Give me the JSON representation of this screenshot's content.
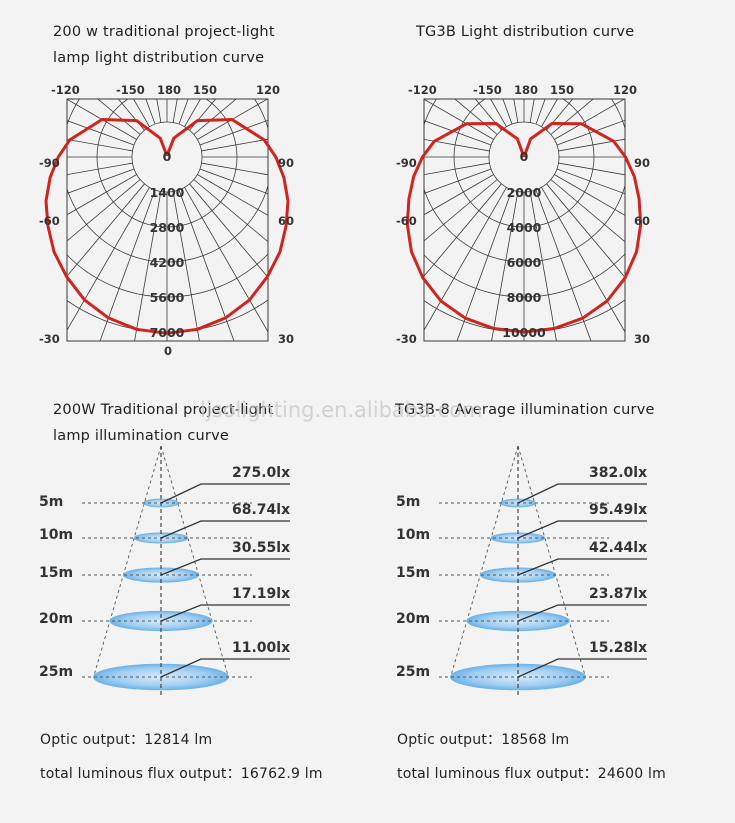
{
  "watermark": "ljsolighting.en.alibaba.com",
  "chart_data": [
    {
      "type": "polar-light-distribution",
      "title_lines": [
        "200 w traditional project-light",
        "lamp light distribution curve"
      ],
      "top_angle_labels": [
        "-120",
        "-150",
        "180",
        "150",
        "120"
      ],
      "left_angle_labels": [
        "-90",
        "-60",
        "-30"
      ],
      "right_angle_labels": [
        "90",
        "60",
        "30"
      ],
      "bottom_angle_label": "0",
      "center_label": "0",
      "radial_ticks": [
        "1400",
        "2800",
        "4200",
        "5600",
        "7000"
      ],
      "rmax": 7000,
      "curve": {
        "unit": "cd",
        "angles": [
          180,
          160,
          140,
          120,
          100,
          90,
          80,
          70,
          60,
          50,
          40,
          30,
          20,
          10,
          0
        ],
        "values": [
          50,
          800,
          1900,
          3000,
          3950,
          4350,
          4750,
          5150,
          5500,
          5900,
          6250,
          6600,
          6850,
          7000,
          7050
        ]
      }
    },
    {
      "type": "polar-light-distribution",
      "title_lines": [
        "TG3B Light distribution curve"
      ],
      "top_angle_labels": [
        "-120",
        "-150",
        "180",
        "150",
        "120"
      ],
      "left_angle_labels": [
        "-90",
        "-60",
        "-30"
      ],
      "right_angle_labels": [
        "90",
        "60",
        "30"
      ],
      "bottom_angle_label": "",
      "center_label": "0",
      "radial_ticks": [
        "2000",
        "4000",
        "6000",
        "8000",
        "10000"
      ],
      "rmax": 10000,
      "curve": {
        "unit": "cd",
        "angles": [
          180,
          160,
          140,
          120,
          100,
          90,
          80,
          70,
          60,
          50,
          40,
          30,
          20,
          10,
          0
        ],
        "values": [
          0,
          1100,
          2500,
          3800,
          5200,
          5800,
          6400,
          7000,
          7700,
          8400,
          9000,
          9500,
          9800,
          9950,
          10000
        ]
      }
    },
    {
      "type": "illumination-cone",
      "title_lines": [
        "200W Traditional project-light",
        "lamp illumination curve"
      ],
      "distances": [
        "5m",
        "10m",
        "15m",
        "20m",
        "25m"
      ],
      "lux_labels": [
        "275.0lx",
        "68.74lx",
        "30.55lx",
        "17.19lx",
        "11.00lx"
      ],
      "lux_values": [
        275.0,
        68.74,
        30.55,
        17.19,
        11.0
      ],
      "footer": [
        "Optic output：12814 lm",
        "total luminous flux output：16762.9 lm"
      ]
    },
    {
      "type": "illumination-cone",
      "title_lines": [
        "TG3B-8 Average illumination curve"
      ],
      "distances": [
        "5m",
        "10m",
        "15m",
        "20m",
        "25m"
      ],
      "lux_labels": [
        "382.0lx",
        "95.49lx",
        "42.44lx",
        "23.87lx",
        "15.28lx"
      ],
      "lux_values": [
        382.0,
        95.49,
        42.44,
        23.87,
        15.28
      ],
      "footer": [
        "Optic output：18568 lm",
        "total luminous flux output：24600 lm"
      ]
    }
  ],
  "colors": {
    "curve": "#d1241e",
    "grid": "#3a3a3a",
    "disc_fill": "#a9d3f2",
    "disc_edge": "#6fb6ea"
  }
}
